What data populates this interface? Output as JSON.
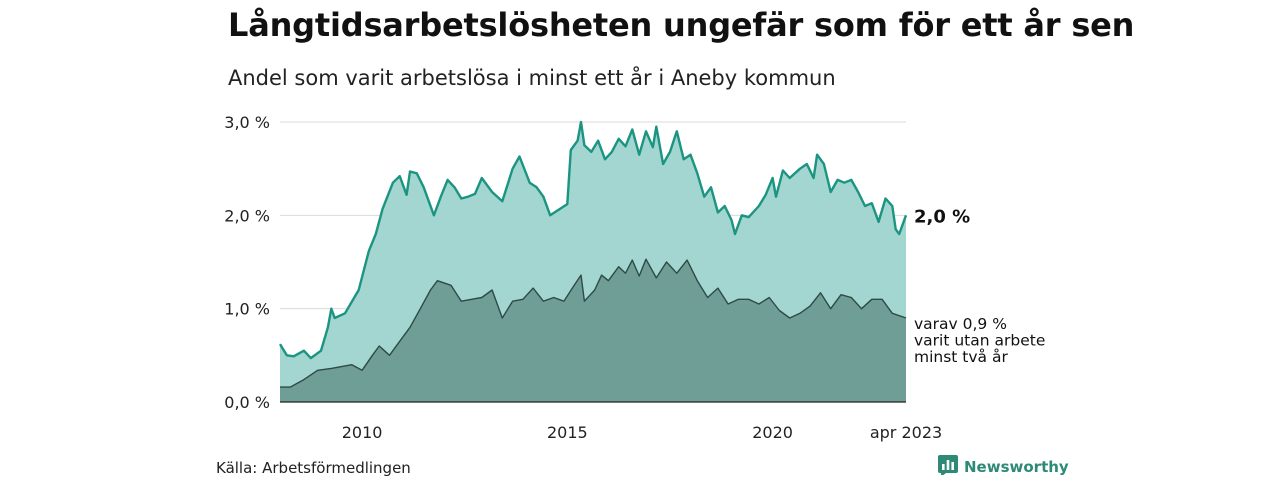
{
  "title": "Långtidsarbetslösheten ungefär som för ett år sen",
  "subtitle": "Andel som varit arbetslösa i minst ett år i Aneby kommun",
  "source": "Källa: Arbetsförmedlingen",
  "brand": "Newsworthy",
  "icon": "newsworthy-chart-logo-icon",
  "colors": {
    "total_fill": "#a3d6d0",
    "total_line": "#1b9482",
    "sub_fill": "#6e9e96",
    "sub_line": "#2e4a45",
    "grid": "#d9d9d9",
    "brand": "#2d8a76"
  },
  "chart_data": {
    "type": "area",
    "x_start": "2008-01",
    "x_end": "2023-04",
    "frequency": "monthly",
    "ylim": [
      0,
      3.0
    ],
    "y_ticks": [
      {
        "value": 0,
        "label": "0,0 %"
      },
      {
        "value": 1,
        "label": "1,0 %"
      },
      {
        "value": 2,
        "label": "2,0 %"
      },
      {
        "value": 3,
        "label": "3,0 %"
      }
    ],
    "x_ticks": [
      {
        "date": "2010-01",
        "label": "2010"
      },
      {
        "date": "2015-01",
        "label": "2015"
      },
      {
        "date": "2020-01",
        "label": "2020"
      },
      {
        "date": "2023-04",
        "label": "apr 2023"
      }
    ],
    "grid": "horizontal",
    "series": [
      {
        "key": "total",
        "end_label": "2,0 %",
        "anchors": [
          [
            "2008-01",
            0.62
          ],
          [
            "2008-03",
            0.5
          ],
          [
            "2008-05",
            0.49
          ],
          [
            "2008-08",
            0.55
          ],
          [
            "2008-10",
            0.47
          ],
          [
            "2009-01",
            0.55
          ],
          [
            "2009-03",
            0.8
          ],
          [
            "2009-04",
            1.0
          ],
          [
            "2009-05",
            0.9
          ],
          [
            "2009-08",
            0.95
          ],
          [
            "2009-12",
            1.2
          ],
          [
            "2010-03",
            1.62
          ],
          [
            "2010-05",
            1.8
          ],
          [
            "2010-07",
            2.07
          ],
          [
            "2010-10",
            2.35
          ],
          [
            "2010-12",
            2.42
          ],
          [
            "2011-02",
            2.22
          ],
          [
            "2011-03",
            2.47
          ],
          [
            "2011-05",
            2.45
          ],
          [
            "2011-07",
            2.3
          ],
          [
            "2011-10",
            2.0
          ],
          [
            "2011-12",
            2.2
          ],
          [
            "2012-02",
            2.38
          ],
          [
            "2012-04",
            2.3
          ],
          [
            "2012-06",
            2.18
          ],
          [
            "2012-08",
            2.2
          ],
          [
            "2012-10",
            2.23
          ],
          [
            "2012-12",
            2.4
          ],
          [
            "2013-03",
            2.25
          ],
          [
            "2013-06",
            2.15
          ],
          [
            "2013-09",
            2.5
          ],
          [
            "2013-11",
            2.63
          ],
          [
            "2014-02",
            2.35
          ],
          [
            "2014-04",
            2.3
          ],
          [
            "2014-06",
            2.2
          ],
          [
            "2014-08",
            2.0
          ],
          [
            "2014-10",
            2.05
          ],
          [
            "2015-01",
            2.12
          ],
          [
            "2015-02",
            2.7
          ],
          [
            "2015-04",
            2.8
          ],
          [
            "2015-05",
            3.0
          ],
          [
            "2015-06",
            2.75
          ],
          [
            "2015-08",
            2.68
          ],
          [
            "2015-10",
            2.8
          ],
          [
            "2015-12",
            2.6
          ],
          [
            "2016-02",
            2.68
          ],
          [
            "2016-04",
            2.82
          ],
          [
            "2016-06",
            2.74
          ],
          [
            "2016-08",
            2.92
          ],
          [
            "2016-10",
            2.65
          ],
          [
            "2016-12",
            2.9
          ],
          [
            "2017-02",
            2.73
          ],
          [
            "2017-03",
            2.95
          ],
          [
            "2017-05",
            2.55
          ],
          [
            "2017-07",
            2.68
          ],
          [
            "2017-09",
            2.9
          ],
          [
            "2017-11",
            2.6
          ],
          [
            "2018-01",
            2.65
          ],
          [
            "2018-03",
            2.45
          ],
          [
            "2018-05",
            2.2
          ],
          [
            "2018-07",
            2.3
          ],
          [
            "2018-09",
            2.03
          ],
          [
            "2018-11",
            2.1
          ],
          [
            "2019-01",
            1.95
          ],
          [
            "2019-02",
            1.8
          ],
          [
            "2019-04",
            2.0
          ],
          [
            "2019-06",
            1.98
          ],
          [
            "2019-09",
            2.1
          ],
          [
            "2019-11",
            2.22
          ],
          [
            "2020-01",
            2.4
          ],
          [
            "2020-02",
            2.2
          ],
          [
            "2020-04",
            2.48
          ],
          [
            "2020-06",
            2.4
          ],
          [
            "2020-09",
            2.5
          ],
          [
            "2020-11",
            2.55
          ],
          [
            "2021-01",
            2.4
          ],
          [
            "2021-02",
            2.65
          ],
          [
            "2021-04",
            2.55
          ],
          [
            "2021-06",
            2.25
          ],
          [
            "2021-08",
            2.38
          ],
          [
            "2021-10",
            2.35
          ],
          [
            "2021-12",
            2.38
          ],
          [
            "2022-02",
            2.25
          ],
          [
            "2022-04",
            2.1
          ],
          [
            "2022-06",
            2.13
          ],
          [
            "2022-08",
            1.93
          ],
          [
            "2022-10",
            2.18
          ],
          [
            "2022-12",
            2.1
          ],
          [
            "2023-01",
            1.85
          ],
          [
            "2023-02",
            1.8
          ],
          [
            "2023-04",
            2.0
          ]
        ]
      },
      {
        "key": "two_years",
        "end_label": "varav 0,9 %",
        "end_label_lines": [
          "varav 0,9 %",
          "varit utan arbete",
          "minst två år"
        ],
        "anchors": [
          [
            "2008-01",
            0.16
          ],
          [
            "2008-04",
            0.16
          ],
          [
            "2008-08",
            0.24
          ],
          [
            "2008-12",
            0.34
          ],
          [
            "2009-04",
            0.36
          ],
          [
            "2009-10",
            0.4
          ],
          [
            "2010-01",
            0.34
          ],
          [
            "2010-04",
            0.5
          ],
          [
            "2010-06",
            0.6
          ],
          [
            "2010-09",
            0.5
          ],
          [
            "2010-12",
            0.65
          ],
          [
            "2011-03",
            0.8
          ],
          [
            "2011-06",
            1.0
          ],
          [
            "2011-09",
            1.2
          ],
          [
            "2011-11",
            1.3
          ],
          [
            "2012-03",
            1.25
          ],
          [
            "2012-06",
            1.08
          ],
          [
            "2012-09",
            1.1
          ],
          [
            "2012-12",
            1.12
          ],
          [
            "2013-03",
            1.2
          ],
          [
            "2013-06",
            0.9
          ],
          [
            "2013-09",
            1.08
          ],
          [
            "2013-12",
            1.1
          ],
          [
            "2014-03",
            1.22
          ],
          [
            "2014-06",
            1.08
          ],
          [
            "2014-09",
            1.12
          ],
          [
            "2014-12",
            1.08
          ],
          [
            "2015-03",
            1.25
          ],
          [
            "2015-05",
            1.36
          ],
          [
            "2015-06",
            1.08
          ],
          [
            "2015-09",
            1.2
          ],
          [
            "2015-11",
            1.36
          ],
          [
            "2016-01",
            1.3
          ],
          [
            "2016-04",
            1.45
          ],
          [
            "2016-06",
            1.38
          ],
          [
            "2016-08",
            1.52
          ],
          [
            "2016-10",
            1.35
          ],
          [
            "2016-12",
            1.53
          ],
          [
            "2017-03",
            1.33
          ],
          [
            "2017-06",
            1.5
          ],
          [
            "2017-09",
            1.38
          ],
          [
            "2017-12",
            1.52
          ],
          [
            "2018-03",
            1.3
          ],
          [
            "2018-06",
            1.12
          ],
          [
            "2018-09",
            1.22
          ],
          [
            "2018-12",
            1.05
          ],
          [
            "2019-03",
            1.1
          ],
          [
            "2019-06",
            1.1
          ],
          [
            "2019-09",
            1.05
          ],
          [
            "2019-12",
            1.12
          ],
          [
            "2020-03",
            0.98
          ],
          [
            "2020-06",
            0.9
          ],
          [
            "2020-09",
            0.95
          ],
          [
            "2020-12",
            1.03
          ],
          [
            "2021-03",
            1.17
          ],
          [
            "2021-06",
            1.0
          ],
          [
            "2021-09",
            1.15
          ],
          [
            "2021-12",
            1.12
          ],
          [
            "2022-03",
            1.0
          ],
          [
            "2022-06",
            1.1
          ],
          [
            "2022-09",
            1.1
          ],
          [
            "2022-12",
            0.95
          ],
          [
            "2023-04",
            0.9
          ]
        ]
      }
    ]
  }
}
